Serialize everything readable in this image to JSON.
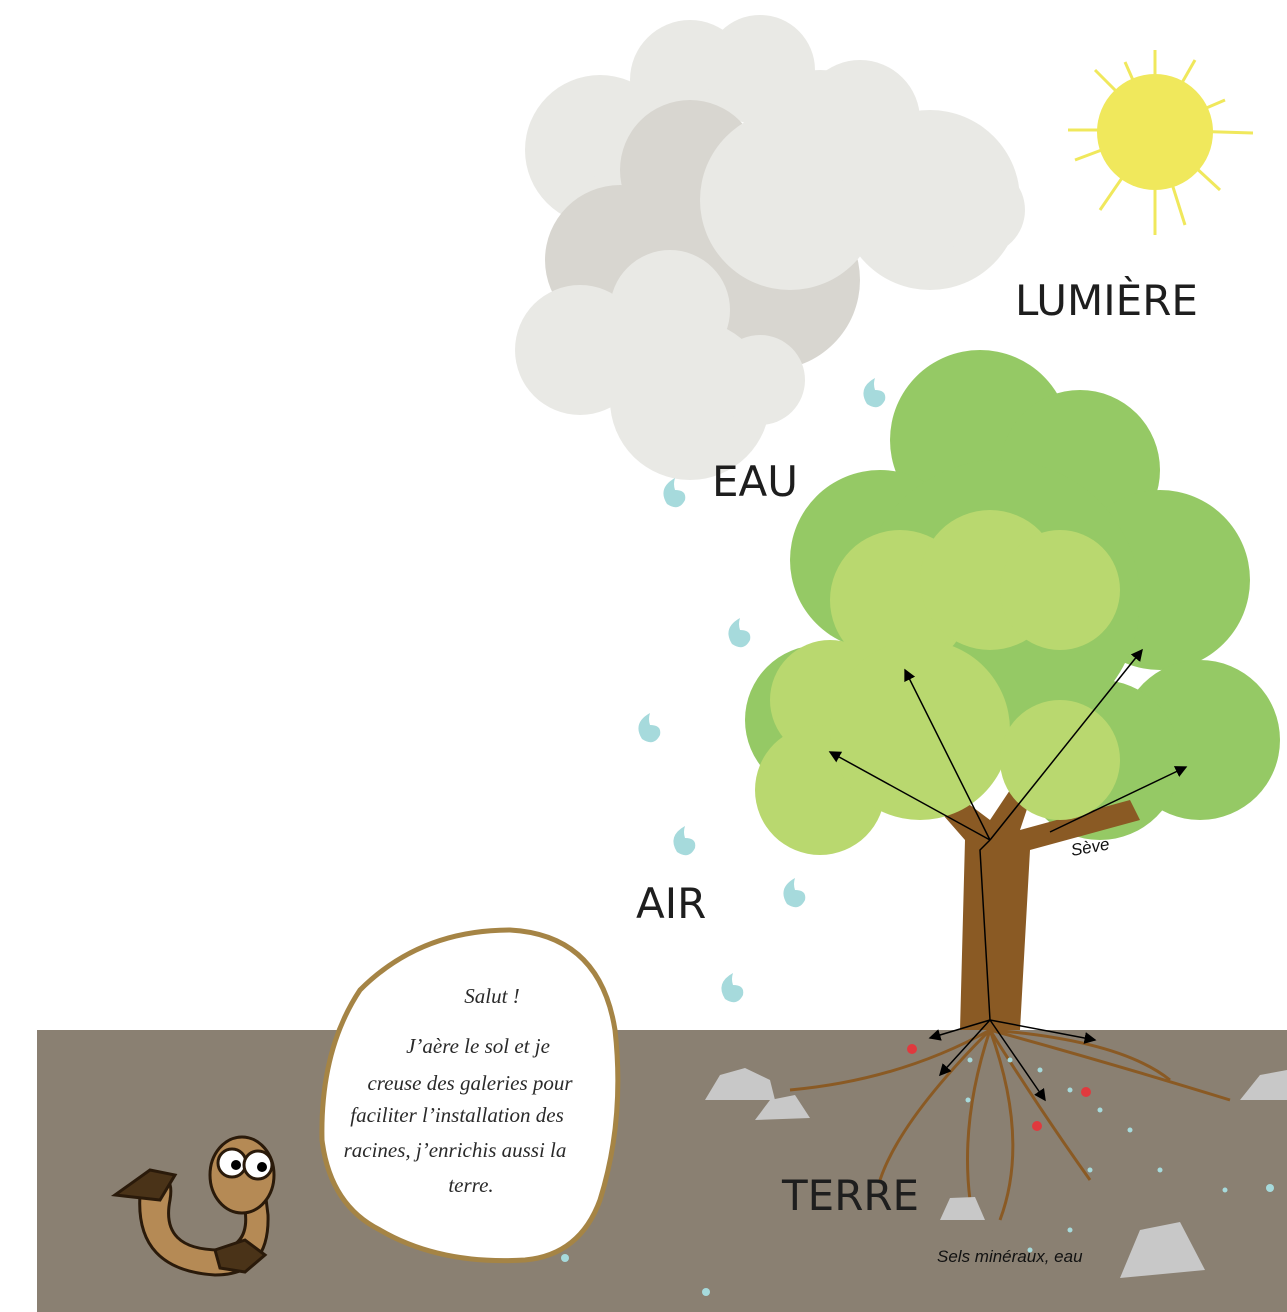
{
  "labels": {
    "light": "LUMIÈRE",
    "water": "EAU",
    "air": "AIR",
    "soil": "TERRE",
    "sap": "Sève",
    "minerals": "Sels minéraux, eau"
  },
  "speech_bubble": {
    "greeting": "Salut !",
    "lines": [
      "J’aère le sol et je",
      "creuse des galeries pour",
      "faciliter l’installation des",
      "racines, j’enrichis aussi la",
      "terre."
    ]
  }
}
